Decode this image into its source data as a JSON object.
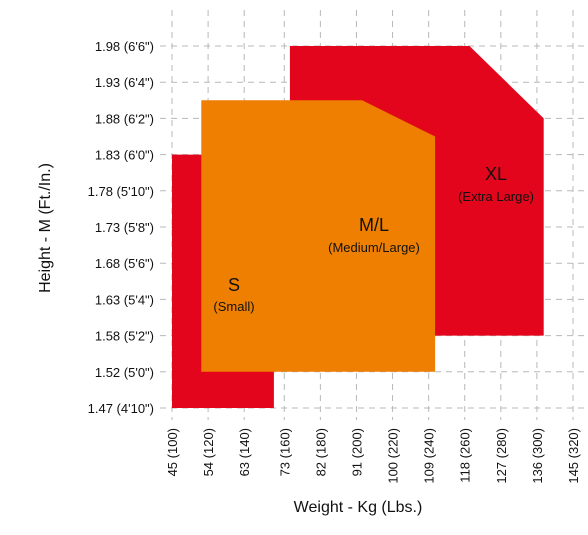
{
  "chart_data": {
    "type": "area",
    "xlabel": "Weight - Kg (Lbs.)",
    "ylabel": "Height - M (Ft./In.)",
    "x_ticks": [
      {
        "value": 45,
        "label": "45 (100)"
      },
      {
        "value": 54,
        "label": "54 (120)"
      },
      {
        "value": 63,
        "label": "63 (140)"
      },
      {
        "value": 73,
        "label": "73 (160)"
      },
      {
        "value": 82,
        "label": "82 (180)"
      },
      {
        "value": 91,
        "label": "91 (200)"
      },
      {
        "value": 100,
        "label": "100 (220)"
      },
      {
        "value": 109,
        "label": "109 (240)"
      },
      {
        "value": 118,
        "label": "118 (260)"
      },
      {
        "value": 127,
        "label": "127 (280)"
      },
      {
        "value": 136,
        "label": "136 (300)"
      },
      {
        "value": 145,
        "label": "145 (320)"
      }
    ],
    "y_ticks": [
      {
        "value": 1.47,
        "label": "1.47 (4'10\")"
      },
      {
        "value": 1.52,
        "label": "1.52 (5'0\")"
      },
      {
        "value": 1.58,
        "label": "1.58 (5'2\")"
      },
      {
        "value": 1.63,
        "label": "1.63 (5'4\")"
      },
      {
        "value": 1.68,
        "label": "1.68 (5'6\")"
      },
      {
        "value": 1.73,
        "label": "1.73 (5'8\")"
      },
      {
        "value": 1.78,
        "label": "1.78 (5'10\")"
      },
      {
        "value": 1.83,
        "label": "1.83 (6'0\")"
      },
      {
        "value": 1.88,
        "label": "1.88 (6'2\")"
      },
      {
        "value": 1.93,
        "label": "1.93 (6'4\")"
      },
      {
        "value": 1.98,
        "label": "1.98 (6'6\")"
      }
    ],
    "xlim": [
      45,
      145
    ],
    "ylim": [
      1.47,
      1.98
    ],
    "grid": true,
    "zones": [
      {
        "name": "XL",
        "subtitle": "(Extra Large)",
        "color": "#e3051b",
        "polygon": [
          [
            74.4,
            1.58
          ],
          [
            74.4,
            1.98
          ],
          [
            119.2,
            1.98
          ],
          [
            137.7,
            1.88
          ],
          [
            137.7,
            1.58
          ]
        ]
      },
      {
        "name": "S",
        "subtitle": "(Small)",
        "color": "#e3051b",
        "polygon": [
          [
            45,
            1.47
          ],
          [
            45,
            1.83
          ],
          [
            61.5,
            1.83
          ],
          [
            70.4,
            1.758
          ],
          [
            70.4,
            1.47
          ]
        ]
      },
      {
        "name": "M/L",
        "subtitle": "(Medium/Large)",
        "color": "#ee7f00",
        "polygon": [
          [
            52.3,
            1.52
          ],
          [
            52.3,
            1.905
          ],
          [
            92.4,
            1.905
          ],
          [
            110.6,
            1.855
          ],
          [
            110.6,
            1.52
          ]
        ]
      }
    ]
  }
}
